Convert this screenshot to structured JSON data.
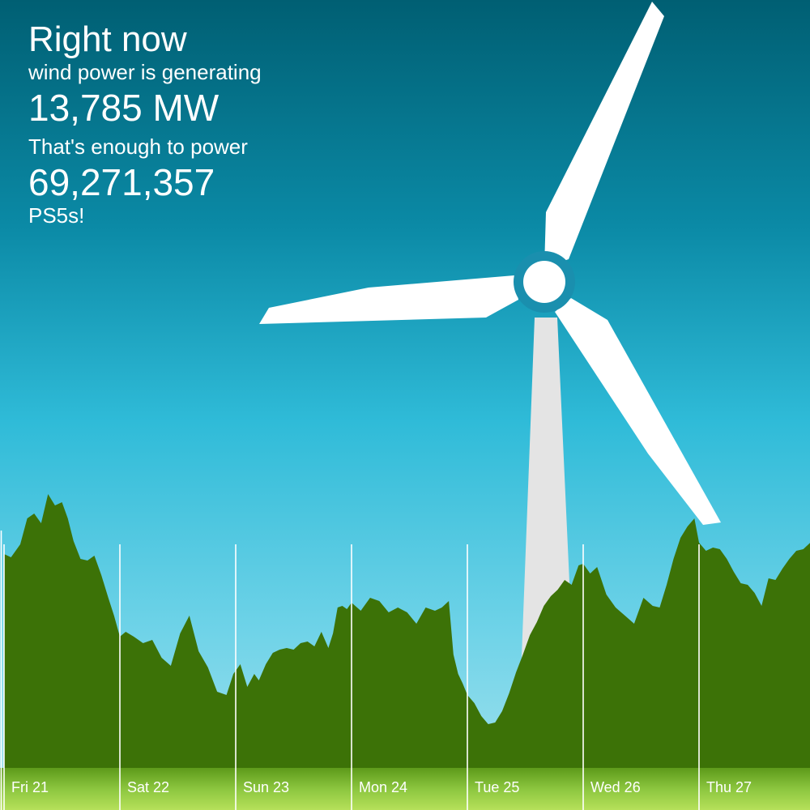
{
  "headline": {
    "title": "Right now",
    "line1": "wind power is generating",
    "power": "13,785 MW",
    "line2": "That's enough to power",
    "count": "69,271,357",
    "unit": "PS5s!"
  },
  "colors": {
    "sky_top": "#005f73",
    "sky_bottom": "#a7e3ee",
    "area_fill": "#3c7207",
    "axis_band": "#8cc63f",
    "turbine_blade": "#ffffff",
    "turbine_tower": "#e4e4e4"
  },
  "chart_data": {
    "type": "area",
    "title": "",
    "xlabel": "",
    "ylabel": "",
    "x_tick_labels": [
      "Fri 21",
      "Sat 22",
      "Sun 23",
      "Mon 24",
      "Tue 25",
      "Wed 26",
      "Thu 27"
    ],
    "grid": "vertical day separators",
    "series": [
      {
        "x_days": [
          0,
          0.06,
          0.14,
          0.2,
          0.26,
          0.32,
          0.38,
          0.44,
          0.5,
          0.55,
          0.6,
          0.66,
          0.72,
          0.78,
          0.84,
          0.9,
          0.95,
          1.0,
          1.05,
          1.12,
          1.2,
          1.28,
          1.36,
          1.44,
          1.52,
          1.6,
          1.68,
          1.76,
          1.84,
          1.92,
          1.98,
          2.04,
          2.1,
          2.16,
          2.2,
          2.26,
          2.32,
          2.38,
          2.44,
          2.5,
          2.56,
          2.62,
          2.68,
          2.74,
          2.8,
          2.84,
          2.88,
          2.92,
          2.96,
          3.0,
          3.08,
          3.16,
          3.24,
          3.32,
          3.4,
          3.48,
          3.56,
          3.64,
          3.72,
          3.78,
          3.84,
          3.88,
          3.92,
          3.96,
          4.0,
          4.06,
          4.12,
          4.18,
          4.24,
          4.3,
          4.36,
          4.42,
          4.48,
          4.54,
          4.6,
          4.66,
          4.72,
          4.78,
          4.84,
          4.9,
          4.96,
          5.0,
          5.06,
          5.12,
          5.2,
          5.28,
          5.36,
          5.44,
          5.52,
          5.6,
          5.66,
          5.72,
          5.78,
          5.84,
          5.9,
          5.96,
          6.0,
          6.06,
          6.12,
          6.18,
          6.24,
          6.3,
          6.36,
          6.42,
          6.48,
          6.54,
          6.6,
          6.66,
          6.72,
          6.78,
          6.84,
          6.9,
          6.96,
          7.0
        ],
        "values": [
          13200,
          13000,
          13800,
          15400,
          15700,
          15100,
          16900,
          16200,
          16400,
          15400,
          14000,
          12900,
          12800,
          13100,
          11900,
          10500,
          9400,
          8100,
          8400,
          8100,
          7700,
          7900,
          6800,
          6300,
          8300,
          9400,
          7200,
          6200,
          4700,
          4500,
          5800,
          6400,
          5000,
          5800,
          5400,
          6400,
          7100,
          7300,
          7400,
          7300,
          7700,
          7800,
          7500,
          8400,
          7400,
          8300,
          9900,
          10000,
          9800,
          10200,
          9700,
          10500,
          10300,
          9600,
          9900,
          9600,
          8900,
          9900,
          9700,
          9900,
          10300,
          7000,
          5800,
          5200,
          4500,
          4000,
          3200,
          2700,
          2800,
          3500,
          4600,
          5900,
          7000,
          8200,
          9000,
          10000,
          10600,
          11000,
          11600,
          11300,
          12500,
          12600,
          12000,
          12400,
          10700,
          9900,
          9400,
          8900,
          10500,
          10000,
          9900,
          11300,
          12900,
          14200,
          14900,
          15400,
          13900,
          13400,
          13600,
          13500,
          12900,
          12100,
          11400,
          11300,
          10800,
          10000,
          11700,
          11600,
          12300,
          12900,
          13400,
          13500,
          13900,
          13800
        ]
      }
    ],
    "ylim": [
      0,
      20000
    ]
  }
}
